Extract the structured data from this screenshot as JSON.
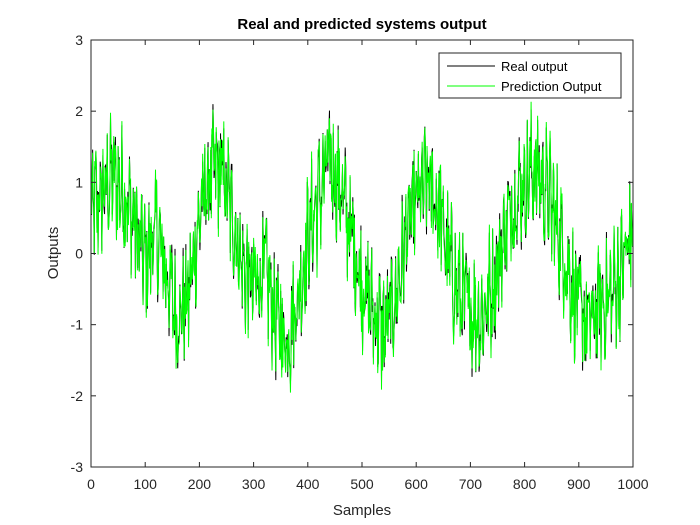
{
  "chart_data": {
    "type": "line",
    "title": "Real and predicted systems output",
    "xlabel": "Samples",
    "ylabel": "Outputs",
    "xlim": [
      0,
      1000
    ],
    "ylim": [
      -3,
      3
    ],
    "xticks": [
      "0",
      "100",
      "200",
      "300",
      "400",
      "500",
      "600",
      "700",
      "800",
      "900",
      "1000"
    ],
    "yticks": [
      "3",
      "2",
      "1",
      "0",
      "-1",
      "-2",
      "-3"
    ],
    "grid": false,
    "legend_position": "top-right",
    "noise_amplitude": 0.45,
    "sample_count": 1000,
    "series": [
      {
        "name": "Real output",
        "color": "#000000",
        "envelope": {
          "x": [
            0,
            20,
            40,
            60,
            80,
            100,
            120,
            140,
            160,
            180,
            200,
            220,
            240,
            260,
            280,
            300,
            320,
            340,
            360,
            380,
            400,
            420,
            440,
            460,
            480,
            500,
            520,
            540,
            560,
            580,
            600,
            620,
            640,
            660,
            680,
            700,
            720,
            740,
            760,
            780,
            800,
            820,
            840,
            860,
            880,
            900,
            920,
            940,
            960,
            980,
            1000
          ],
          "y": [
            0.6,
            0.8,
            1.1,
            0.9,
            0.4,
            -0.1,
            0.3,
            -0.3,
            -0.9,
            -0.6,
            0.5,
            1.1,
            1.2,
            0.6,
            -0.2,
            -0.5,
            -0.2,
            -0.9,
            -1.2,
            -0.7,
            0.2,
            0.8,
            1.3,
            0.9,
            0.3,
            -0.4,
            -0.8,
            -1.1,
            -0.7,
            0.2,
            0.7,
            1.0,
            0.7,
            -0.1,
            -0.6,
            -0.8,
            -0.9,
            -0.5,
            0.2,
            0.8,
            1.0,
            1.2,
            0.9,
            0.4,
            -0.2,
            -0.8,
            -1.0,
            -0.7,
            -0.6,
            -0.2,
            0.4
          ]
        }
      },
      {
        "name": "Prediction Output",
        "color": "#00ff00",
        "envelope": {
          "x": [
            0,
            20,
            40,
            60,
            80,
            100,
            120,
            140,
            160,
            180,
            200,
            220,
            240,
            260,
            280,
            300,
            320,
            340,
            360,
            380,
            400,
            420,
            440,
            460,
            480,
            500,
            520,
            540,
            560,
            580,
            600,
            620,
            640,
            660,
            680,
            700,
            720,
            740,
            760,
            780,
            800,
            820,
            840,
            860,
            880,
            900,
            920,
            940,
            960,
            980,
            1000
          ],
          "y": [
            0.6,
            0.8,
            1.1,
            0.9,
            0.4,
            -0.1,
            0.3,
            -0.3,
            -0.9,
            -0.6,
            0.5,
            1.1,
            1.2,
            0.6,
            -0.2,
            -0.5,
            -0.2,
            -0.9,
            -1.2,
            -0.7,
            0.2,
            0.8,
            1.3,
            0.9,
            0.3,
            -0.4,
            -0.8,
            -1.1,
            -0.7,
            0.2,
            0.7,
            1.0,
            0.7,
            -0.1,
            -0.6,
            -0.8,
            -0.9,
            -0.5,
            0.2,
            0.8,
            1.0,
            1.2,
            0.9,
            0.4,
            -0.2,
            -0.8,
            -1.0,
            -0.7,
            -0.6,
            -0.2,
            0.4
          ]
        }
      }
    ]
  }
}
